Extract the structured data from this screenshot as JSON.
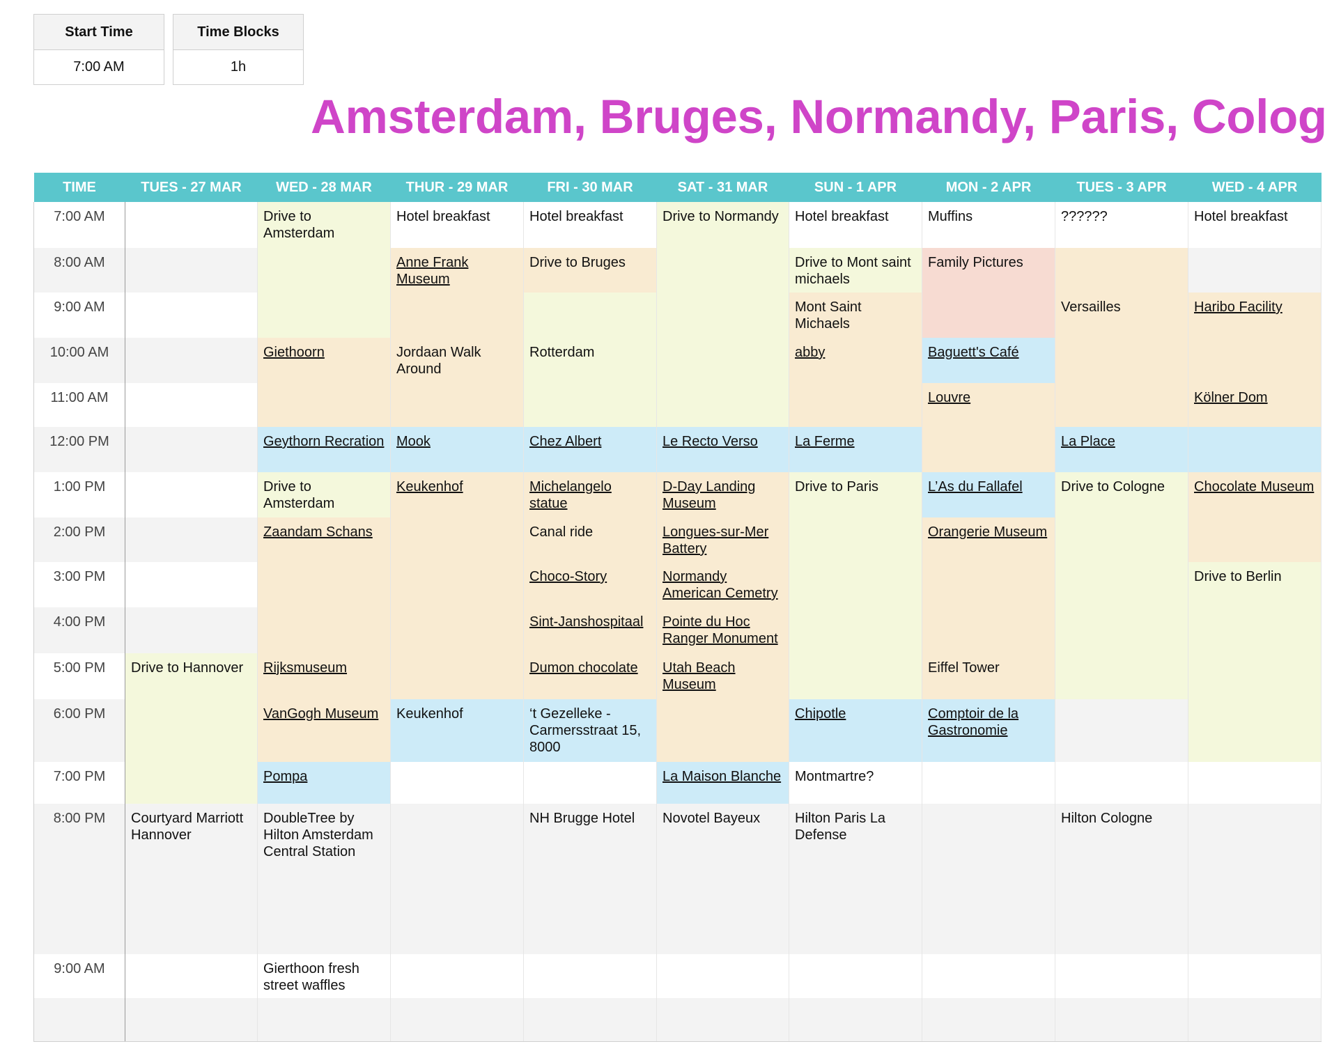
{
  "settings": {
    "start_time_label": "Start Time",
    "start_time_value": "7:00 AM",
    "time_blocks_label": "Time Blocks",
    "time_blocks_value": "1h"
  },
  "title": "Amsterdam, Bruges, Normandy, Paris, Cologne",
  "columns": [
    "TIME",
    "TUES - 27 MAR",
    "WED - 28 MAR",
    "THUR - 29 MAR",
    "FRI - 30 MAR",
    "SAT - 31 MAR",
    "SUN - 1 APR",
    "MON - 2 APR",
    "TUES - 3 APR",
    "WED - 4 APR"
  ],
  "colors": {
    "header": "#5ac6cc",
    "title": "#cf45c8",
    "drive": "#f4f8dc",
    "activity": "#f9ebd2",
    "meal": "#cdebf8",
    "family": "#f7dbd2"
  },
  "rows": [
    {
      "time": "7:00 AM",
      "cells": [
        {
          "text": "",
          "color": ""
        },
        {
          "text": "Drive to Amsterdam",
          "color": "drive"
        },
        {
          "text": "Hotel breakfast",
          "color": ""
        },
        {
          "text": "Hotel breakfast",
          "color": ""
        },
        {
          "text": "Drive to Normandy",
          "color": "drive"
        },
        {
          "text": "Hotel breakfast",
          "color": ""
        },
        {
          "text": "Muffins",
          "color": ""
        },
        {
          "text": "??????",
          "color": ""
        },
        {
          "text": "Hotel breakfast",
          "color": ""
        }
      ]
    },
    {
      "time": "8:00 AM",
      "cells": [
        {
          "text": "",
          "color": ""
        },
        {
          "text": "",
          "color": "drive"
        },
        {
          "text": "Anne Frank Museum",
          "color": "activity",
          "link": true
        },
        {
          "text": "Drive to Bruges",
          "color": "activity"
        },
        {
          "text": "",
          "color": "drive"
        },
        {
          "text": "Drive to Mont saint michaels",
          "color": "drive"
        },
        {
          "text": "Family Pictures",
          "color": "family"
        },
        {
          "text": "",
          "color": "activity"
        },
        {
          "text": "",
          "color": ""
        }
      ]
    },
    {
      "time": "9:00 AM",
      "cells": [
        {
          "text": "",
          "color": ""
        },
        {
          "text": "",
          "color": "drive"
        },
        {
          "text": "",
          "color": "activity"
        },
        {
          "text": "",
          "color": "drive"
        },
        {
          "text": "",
          "color": "drive"
        },
        {
          "text": "Mont Saint Michaels",
          "color": "activity"
        },
        {
          "text": "",
          "color": "family"
        },
        {
          "text": "Versailles",
          "color": "activity"
        },
        {
          "text": "Haribo Facility",
          "color": "activity",
          "link": true
        }
      ]
    },
    {
      "time": "10:00 AM",
      "cells": [
        {
          "text": "",
          "color": ""
        },
        {
          "text": "Giethoorn",
          "color": "activity",
          "link": true
        },
        {
          "text": "Jordaan Walk Around",
          "color": "activity"
        },
        {
          "text": "Rotterdam",
          "color": "drive"
        },
        {
          "text": "",
          "color": "drive"
        },
        {
          "text": "abby",
          "color": "activity",
          "link": true
        },
        {
          "text": "Baguett's Café",
          "color": "meal",
          "link": true
        },
        {
          "text": "",
          "color": "activity"
        },
        {
          "text": "",
          "color": "activity"
        }
      ]
    },
    {
      "time": "11:00 AM",
      "cells": [
        {
          "text": "",
          "color": ""
        },
        {
          "text": "",
          "color": "activity"
        },
        {
          "text": "",
          "color": "activity"
        },
        {
          "text": "",
          "color": "drive"
        },
        {
          "text": "",
          "color": "drive"
        },
        {
          "text": "",
          "color": "activity"
        },
        {
          "text": "Louvre",
          "color": "activity",
          "link": true
        },
        {
          "text": "",
          "color": "activity"
        },
        {
          "text": "Kölner Dom",
          "color": "activity",
          "link": true
        }
      ]
    },
    {
      "time": "12:00 PM",
      "cells": [
        {
          "text": "",
          "color": ""
        },
        {
          "text": "Geythorn Recration",
          "color": "meal",
          "link": true
        },
        {
          "text": "Mook",
          "color": "meal",
          "link": true
        },
        {
          "text": "Chez Albert",
          "color": "meal",
          "link": true
        },
        {
          "text": "Le Recto Verso",
          "color": "meal",
          "link": true
        },
        {
          "text": "La Ferme",
          "color": "meal",
          "link": true
        },
        {
          "text": "",
          "color": "activity"
        },
        {
          "text": "La Place",
          "color": "meal",
          "link": true
        },
        {
          "text": "",
          "color": "meal"
        }
      ]
    },
    {
      "time": "1:00 PM",
      "cells": [
        {
          "text": "",
          "color": ""
        },
        {
          "text": "Drive to Amsterdam",
          "color": "drive"
        },
        {
          "text": "Keukenhof",
          "color": "activity",
          "link": true
        },
        {
          "text": "Michelangelo statue",
          "color": "activity",
          "link": true
        },
        {
          "text": "D-Day Landing Museum",
          "color": "activity",
          "link": true
        },
        {
          "text": "Drive to Paris",
          "color": "drive"
        },
        {
          "text": "L’As du Fallafel",
          "color": "meal",
          "link": true
        },
        {
          "text": "Drive to Cologne",
          "color": "drive"
        },
        {
          "text": "Chocolate Museum",
          "color": "activity",
          "link": true
        }
      ]
    },
    {
      "time": "2:00 PM",
      "cells": [
        {
          "text": "",
          "color": ""
        },
        {
          "text": "Zaandam Schans",
          "color": "activity",
          "link": true
        },
        {
          "text": "",
          "color": "activity"
        },
        {
          "text": "Canal ride",
          "color": "activity"
        },
        {
          "text": "Longues-sur-Mer Battery",
          "color": "activity",
          "link": true
        },
        {
          "text": "",
          "color": "drive"
        },
        {
          "text": "Orangerie Museum",
          "color": "activity",
          "link": true
        },
        {
          "text": "",
          "color": "drive"
        },
        {
          "text": "",
          "color": "activity"
        }
      ]
    },
    {
      "time": "3:00 PM",
      "cells": [
        {
          "text": "",
          "color": ""
        },
        {
          "text": "",
          "color": "activity"
        },
        {
          "text": "",
          "color": "activity"
        },
        {
          "text": "Choco-Story",
          "color": "activity",
          "link": true
        },
        {
          "text": "Normandy American Cemetry",
          "color": "activity",
          "link": true
        },
        {
          "text": "",
          "color": "drive"
        },
        {
          "text": "",
          "color": "activity"
        },
        {
          "text": "",
          "color": "drive"
        },
        {
          "text": "Drive to Berlin",
          "color": "drive"
        }
      ]
    },
    {
      "time": "4:00 PM",
      "cells": [
        {
          "text": "",
          "color": ""
        },
        {
          "text": "",
          "color": "activity"
        },
        {
          "text": "",
          "color": "activity"
        },
        {
          "text": "Sint-Janshospitaal",
          "color": "activity",
          "link": true
        },
        {
          "text": "Pointe du Hoc Ranger Monument",
          "color": "activity",
          "link": true
        },
        {
          "text": "",
          "color": "drive"
        },
        {
          "text": "",
          "color": "activity"
        },
        {
          "text": "",
          "color": "drive"
        },
        {
          "text": "",
          "color": "drive"
        }
      ]
    },
    {
      "time": "5:00 PM",
      "cells": [
        {
          "text": "Drive to Hannover",
          "color": "drive"
        },
        {
          "text": "Rijksmuseum",
          "color": "activity",
          "link": true
        },
        {
          "text": "",
          "color": "activity"
        },
        {
          "text": "Dumon chocolate",
          "color": "activity",
          "link": true
        },
        {
          "text": "Utah Beach Museum",
          "color": "activity",
          "link": true
        },
        {
          "text": "",
          "color": "drive"
        },
        {
          "text": "Eiffel Tower",
          "color": "activity"
        },
        {
          "text": "",
          "color": "drive"
        },
        {
          "text": "",
          "color": "drive"
        }
      ]
    },
    {
      "time": "6:00 PM",
      "cells": [
        {
          "text": "",
          "color": "drive"
        },
        {
          "text": "VanGogh Museum",
          "color": "activity",
          "link": true
        },
        {
          "text": "Keukenhof",
          "color": "meal"
        },
        {
          "text": "‘t Gezelleke - Carmersstraat 15, 8000",
          "color": "meal"
        },
        {
          "text": "",
          "color": "activity"
        },
        {
          "text": "Chipotle",
          "color": "meal",
          "link": true
        },
        {
          "text": "Comptoir de la Gastronomie",
          "color": "meal",
          "link": true
        },
        {
          "text": "",
          "color": ""
        },
        {
          "text": "",
          "color": "drive"
        }
      ]
    },
    {
      "time": "7:00 PM",
      "cells": [
        {
          "text": "",
          "color": "drive"
        },
        {
          "text": "Pompa",
          "color": "meal",
          "link": true
        },
        {
          "text": "",
          "color": ""
        },
        {
          "text": "",
          "color": ""
        },
        {
          "text": "La Maison Blanche",
          "color": "meal",
          "link": true
        },
        {
          "text": "Montmartre?",
          "color": ""
        },
        {
          "text": "",
          "color": ""
        },
        {
          "text": "",
          "color": ""
        },
        {
          "text": "",
          "color": ""
        }
      ]
    },
    {
      "time": "8:00 PM",
      "cells": [
        {
          "text": "Courtyard Marriott Hannover",
          "color": ""
        },
        {
          "text": "DoubleTree by Hilton Amsterdam Central Station",
          "color": ""
        },
        {
          "text": "",
          "color": ""
        },
        {
          "text": "NH Brugge Hotel",
          "color": ""
        },
        {
          "text": "Novotel Bayeux",
          "color": ""
        },
        {
          "text": "Hilton Paris La Defense",
          "color": ""
        },
        {
          "text": "",
          "color": ""
        },
        {
          "text": "Hilton Cologne",
          "color": ""
        },
        {
          "text": "",
          "color": ""
        }
      ]
    },
    {
      "time": "9:00 AM",
      "cells": [
        {
          "text": "",
          "color": ""
        },
        {
          "text": "Gierthoon fresh street waffles",
          "color": ""
        },
        {
          "text": "",
          "color": ""
        },
        {
          "text": "",
          "color": ""
        },
        {
          "text": "",
          "color": ""
        },
        {
          "text": "",
          "color": ""
        },
        {
          "text": "",
          "color": ""
        },
        {
          "text": "",
          "color": ""
        },
        {
          "text": "",
          "color": ""
        }
      ]
    },
    {
      "time": "",
      "cells": [
        {
          "text": "",
          "color": ""
        },
        {
          "text": "",
          "color": ""
        },
        {
          "text": "",
          "color": ""
        },
        {
          "text": "",
          "color": ""
        },
        {
          "text": "",
          "color": ""
        },
        {
          "text": "",
          "color": ""
        },
        {
          "text": "",
          "color": ""
        },
        {
          "text": "",
          "color": ""
        },
        {
          "text": "",
          "color": ""
        }
      ]
    }
  ]
}
